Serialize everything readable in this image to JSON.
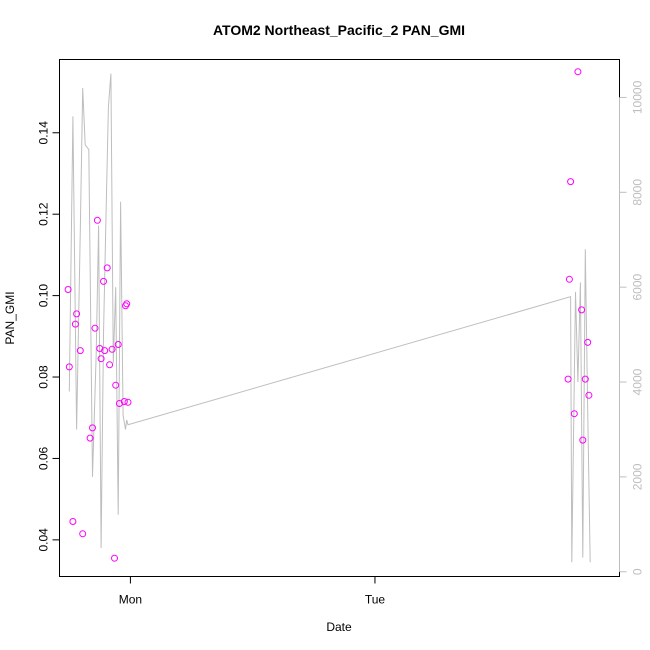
{
  "chart_data": {
    "type": "scatter",
    "title": "ATOM2 Northeast_Pacific_2 PAN_GMI",
    "xlabel": "Date",
    "ylabel": "PAN_GMI",
    "x_unit": "days",
    "xlim": [
      -0.29,
      2.0
    ],
    "ylim": [
      0.031,
      0.158
    ],
    "y2lim": [
      -100,
      10800
    ],
    "x_ticks": [
      {
        "value": 0,
        "label": "Mon"
      },
      {
        "value": 1,
        "label": "Tue"
      }
    ],
    "y_ticks": [
      0.04,
      0.06,
      0.08,
      0.1,
      0.12,
      0.14
    ],
    "y_tick_labels": [
      "0.04",
      "0.06",
      "0.08",
      "0.10",
      "0.12",
      "0.14"
    ],
    "y2_ticks": [
      0,
      2000,
      4000,
      6000,
      8000,
      10000
    ],
    "y2_tick_labels": [
      "0",
      "2000",
      "4000",
      "6000",
      "8000",
      "10000"
    ],
    "colors": {
      "points": "#ff00ff",
      "secondary": "#bebebe",
      "axes": "#000000"
    },
    "series": [
      {
        "kind": "points",
        "axis": "left",
        "x": [
          -0.255,
          -0.25,
          -0.235,
          -0.225,
          -0.22,
          -0.205,
          -0.195,
          -0.165,
          -0.155,
          -0.145,
          -0.135,
          -0.125,
          -0.12,
          -0.11,
          -0.105,
          -0.095,
          -0.085,
          -0.075,
          -0.065,
          -0.06,
          -0.05,
          -0.045,
          -0.025,
          -0.02,
          -0.015,
          -0.01,
          1.79,
          1.795,
          1.8,
          1.815,
          1.83,
          1.845,
          1.85,
          1.86,
          1.87,
          1.875
        ],
        "y": [
          0.1015,
          0.0825,
          0.0445,
          0.093,
          0.0955,
          0.0865,
          0.0415,
          0.065,
          0.0675,
          0.092,
          0.1185,
          0.087,
          0.0845,
          0.1035,
          0.0865,
          0.1068,
          0.083,
          0.0868,
          0.0355,
          0.078,
          0.088,
          0.0735,
          0.074,
          0.0975,
          0.098,
          0.0738,
          0.0795,
          0.104,
          0.128,
          0.071,
          0.155,
          0.0965,
          0.0645,
          0.0795,
          0.0885,
          0.0755
        ]
      },
      {
        "kind": "line",
        "axis": "right",
        "x": [
          -0.25,
          -0.235,
          -0.22,
          -0.205,
          -0.195,
          -0.185,
          -0.17,
          -0.155,
          -0.14,
          -0.13,
          -0.12,
          -0.11,
          -0.1,
          -0.09,
          -0.08,
          -0.07,
          -0.06,
          -0.05,
          -0.04,
          -0.03,
          -0.02,
          -0.015,
          -0.01,
          1.8,
          1.805,
          1.82,
          1.83,
          1.84,
          1.85,
          1.86,
          1.87,
          1.88
        ],
        "y": [
          3800,
          9600,
          3000,
          7200,
          10200,
          9000,
          8900,
          2000,
          4600,
          7300,
          500,
          5000,
          7500,
          9800,
          10500,
          4400,
          6000,
          1200,
          7800,
          3300,
          3000,
          3200,
          3100,
          5800,
          200,
          5900,
          4000,
          6100,
          300,
          6800,
          3400,
          200
        ]
      }
    ]
  }
}
